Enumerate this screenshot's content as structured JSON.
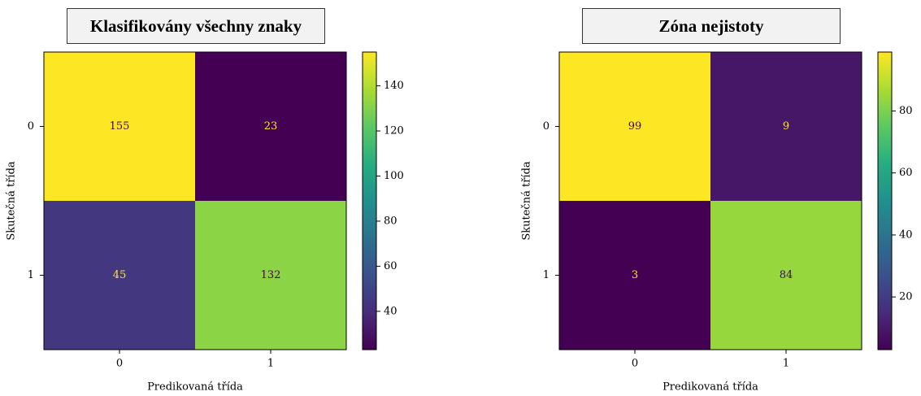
{
  "chart_data": [
    {
      "type": "heatmap",
      "title": "Klasifikovány všechny znaky",
      "xlabel": "Predikovaná třída",
      "ylabel": "Skutečná třída",
      "x_categories": [
        "0",
        "1"
      ],
      "y_categories": [
        "0",
        "1"
      ],
      "values": [
        [
          155,
          23
        ],
        [
          45,
          132
        ]
      ],
      "value_labels": [
        [
          "155",
          "23"
        ],
        [
          "45",
          "132"
        ]
      ],
      "colormap": "viridis",
      "vmin": 23,
      "vmax": 155,
      "colorbar_ticks": [
        40,
        60,
        80,
        100,
        120,
        140
      ],
      "colorbar_tick_labels": [
        "40",
        "60",
        "80",
        "100",
        "120",
        "140"
      ],
      "grid": false
    },
    {
      "type": "heatmap",
      "title": "Zóna nejistoty",
      "xlabel": "Predikovaná třída",
      "ylabel": "Skutečná třída",
      "x_categories": [
        "0",
        "1"
      ],
      "y_categories": [
        "0",
        "1"
      ],
      "values": [
        [
          99,
          9
        ],
        [
          3,
          84
        ]
      ],
      "value_labels": [
        [
          "99",
          "9"
        ],
        [
          "3",
          "84"
        ]
      ],
      "colormap": "viridis",
      "vmin": 3,
      "vmax": 99,
      "colorbar_ticks": [
        20,
        40,
        60,
        80
      ],
      "colorbar_tick_labels": [
        "20",
        "40",
        "60",
        "80"
      ],
      "grid": false
    }
  ]
}
